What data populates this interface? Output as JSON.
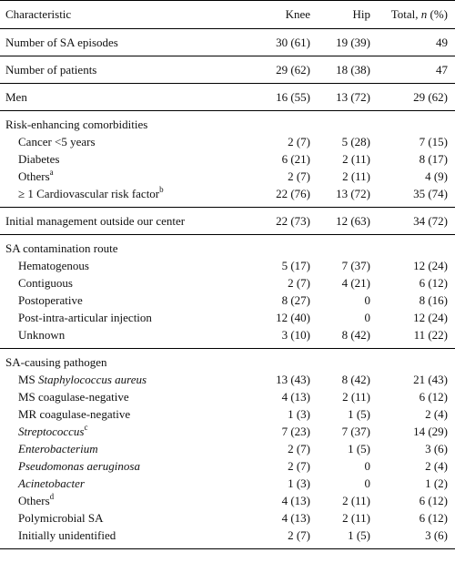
{
  "header": {
    "characteristic": "Characteristic",
    "knee": "Knee",
    "hip": "Hip",
    "total_prefix": "Total, ",
    "total_n": "n",
    "total_suffix": " (%)"
  },
  "rows": {
    "sa_episodes": {
      "label": "Number of SA episodes",
      "knee": "30 (61)",
      "hip": "19 (39)",
      "total": "49"
    },
    "patients": {
      "label": "Number of patients",
      "knee": "29 (62)",
      "hip": "18 (38)",
      "total": "47"
    },
    "men": {
      "label": "Men",
      "knee": "16 (55)",
      "hip": "13 (72)",
      "total": "29 (62)"
    },
    "initial_management": {
      "label": "Initial management outside our center",
      "knee": "22 (73)",
      "hip": "12 (63)",
      "total": "34 (72)"
    }
  },
  "comorbidities": {
    "title": "Risk-enhancing comorbidities",
    "cancer": {
      "label": "Cancer <5 years",
      "knee": "2 (7)",
      "hip": "5 (28)",
      "total": "7 (15)"
    },
    "diabetes": {
      "label": "Diabetes",
      "knee": "6 (21)",
      "hip": "2 (11)",
      "total": "8 (17)"
    },
    "others": {
      "label": "Others",
      "sup": "a",
      "knee": "2 (7)",
      "hip": "2 (11)",
      "total": "4 (9)"
    },
    "cardio": {
      "label": "≥ 1 Cardiovascular risk factor",
      "sup": "b",
      "knee": "22 (76)",
      "hip": "13 (72)",
      "total": "35 (74)"
    }
  },
  "route": {
    "title": "SA contamination route",
    "hematogenous": {
      "label": "Hematogenous",
      "knee": "5 (17)",
      "hip": "7 (37)",
      "total": "12 (24)"
    },
    "contiguous": {
      "label": "Contiguous",
      "knee": "2 (7)",
      "hip": "4 (21)",
      "total": "6 (12)"
    },
    "postoperative": {
      "label": "Postoperative",
      "knee": "8 (27)",
      "hip": "0",
      "total": "8 (16)"
    },
    "injection": {
      "label": "Post-intra-articular injection",
      "knee": "12 (40)",
      "hip": "0",
      "total": "12 (24)"
    },
    "unknown": {
      "label": "Unknown",
      "knee": "3 (10)",
      "hip": "8 (42)",
      "total": "11 (22)"
    }
  },
  "pathogen": {
    "title": "SA-causing pathogen",
    "ms_staph": {
      "prefix": "MS ",
      "italic": "Staphylococcus aureus",
      "knee": "13 (43)",
      "hip": "8 (42)",
      "total": "21 (43)"
    },
    "ms_coag": {
      "label": "MS coagulase-negative",
      "knee": "4 (13)",
      "hip": "2 (11)",
      "total": "6 (12)"
    },
    "mr_coag": {
      "label": "MR coagulase-negative",
      "knee": "1 (3)",
      "hip": "1 (5)",
      "total": "2 (4)"
    },
    "strep": {
      "italic": "Streptococcus",
      "sup": "c",
      "knee": "7 (23)",
      "hip": "7 (37)",
      "total": "14 (29)"
    },
    "entero": {
      "italic": "Enterobacterium",
      "knee": "2 (7)",
      "hip": "1 (5)",
      "total": "3 (6)"
    },
    "pseudo": {
      "italic": "Pseudomonas aeruginosa",
      "knee": "2 (7)",
      "hip": "0",
      "total": "2 (4)"
    },
    "acineto": {
      "italic": "Acinetobacter",
      "knee": "1 (3)",
      "hip": "0",
      "total": "1 (2)"
    },
    "others": {
      "label": "Others",
      "sup": "d",
      "knee": "4 (13)",
      "hip": "2 (11)",
      "total": "6 (12)"
    },
    "polymicrobial": {
      "label": "Polymicrobial SA",
      "knee": "4 (13)",
      "hip": "2 (11)",
      "total": "6 (12)"
    },
    "unidentified": {
      "label": "Initially unidentified",
      "knee": "2 (7)",
      "hip": "1 (5)",
      "total": "3 (6)"
    }
  }
}
